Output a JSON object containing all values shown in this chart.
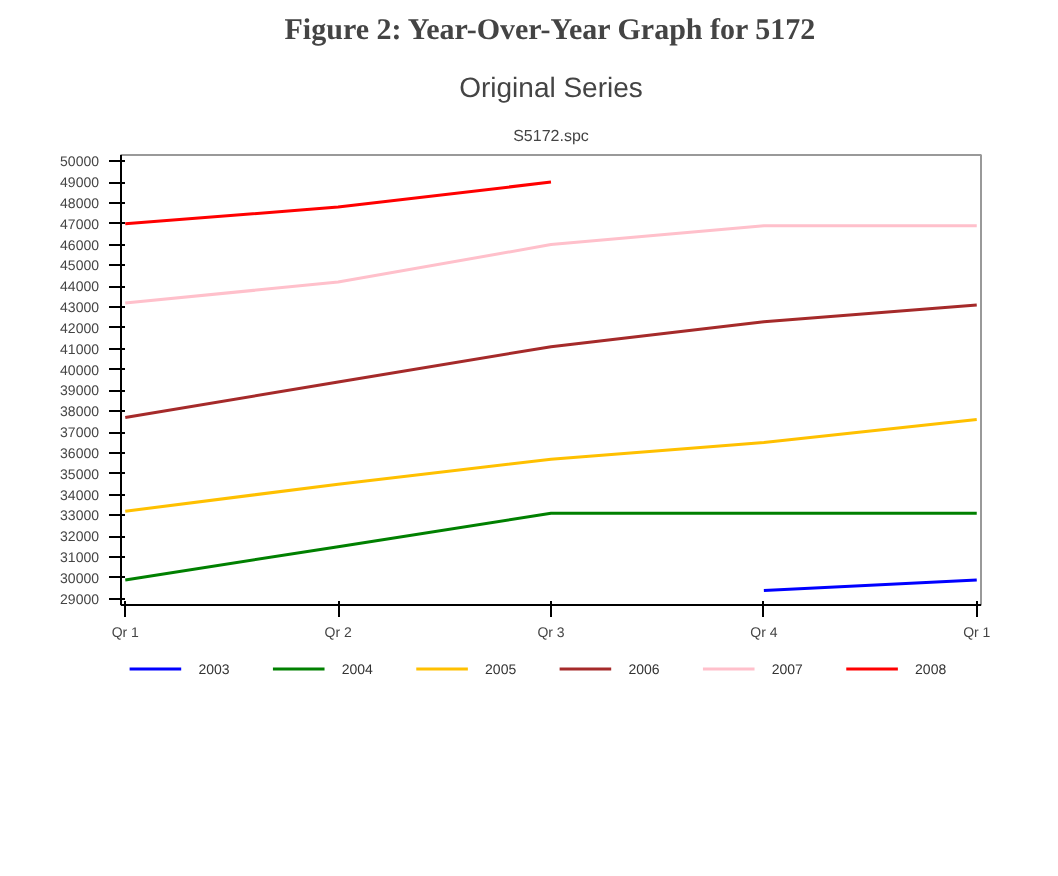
{
  "chart_data": {
    "type": "line",
    "title": "Original Series",
    "subtitle": "S5172.spc",
    "annotations": [
      "Figure 2: Year-Over-Year Graph for 5172"
    ],
    "categories": [
      "Qr 1",
      "Qr 2",
      "Qr 3",
      "Qr 4",
      "Qr 1"
    ],
    "ylim": [
      28700,
      50300
    ],
    "yticks": [
      29000,
      30000,
      31000,
      32000,
      33000,
      34000,
      35000,
      36000,
      37000,
      38000,
      39000,
      40000,
      41000,
      42000,
      43000,
      44000,
      45000,
      46000,
      47000,
      48000,
      49000,
      50000
    ],
    "grid": false,
    "legend": "bottom",
    "marker": "none",
    "line_style": "solid",
    "series": [
      {
        "name": "2003",
        "color": "#0000ff",
        "values": [
          null,
          null,
          null,
          29400,
          29900
        ]
      },
      {
        "name": "2004",
        "color": "#008000",
        "values": [
          29900,
          31500,
          33100,
          33100,
          33100
        ]
      },
      {
        "name": "2005",
        "color": "#ffc000",
        "values": [
          33200,
          34500,
          35700,
          36500,
          37600
        ]
      },
      {
        "name": "2006",
        "color": "#a52a2a",
        "values": [
          37700,
          39400,
          41100,
          42300,
          43100
        ]
      },
      {
        "name": "2007",
        "color": "#ffc0cb",
        "values": [
          43200,
          44200,
          46000,
          46900,
          46900
        ]
      },
      {
        "name": "2008",
        "color": "#ff0000",
        "values": [
          47000,
          47800,
          49000,
          null,
          null
        ]
      }
    ]
  }
}
